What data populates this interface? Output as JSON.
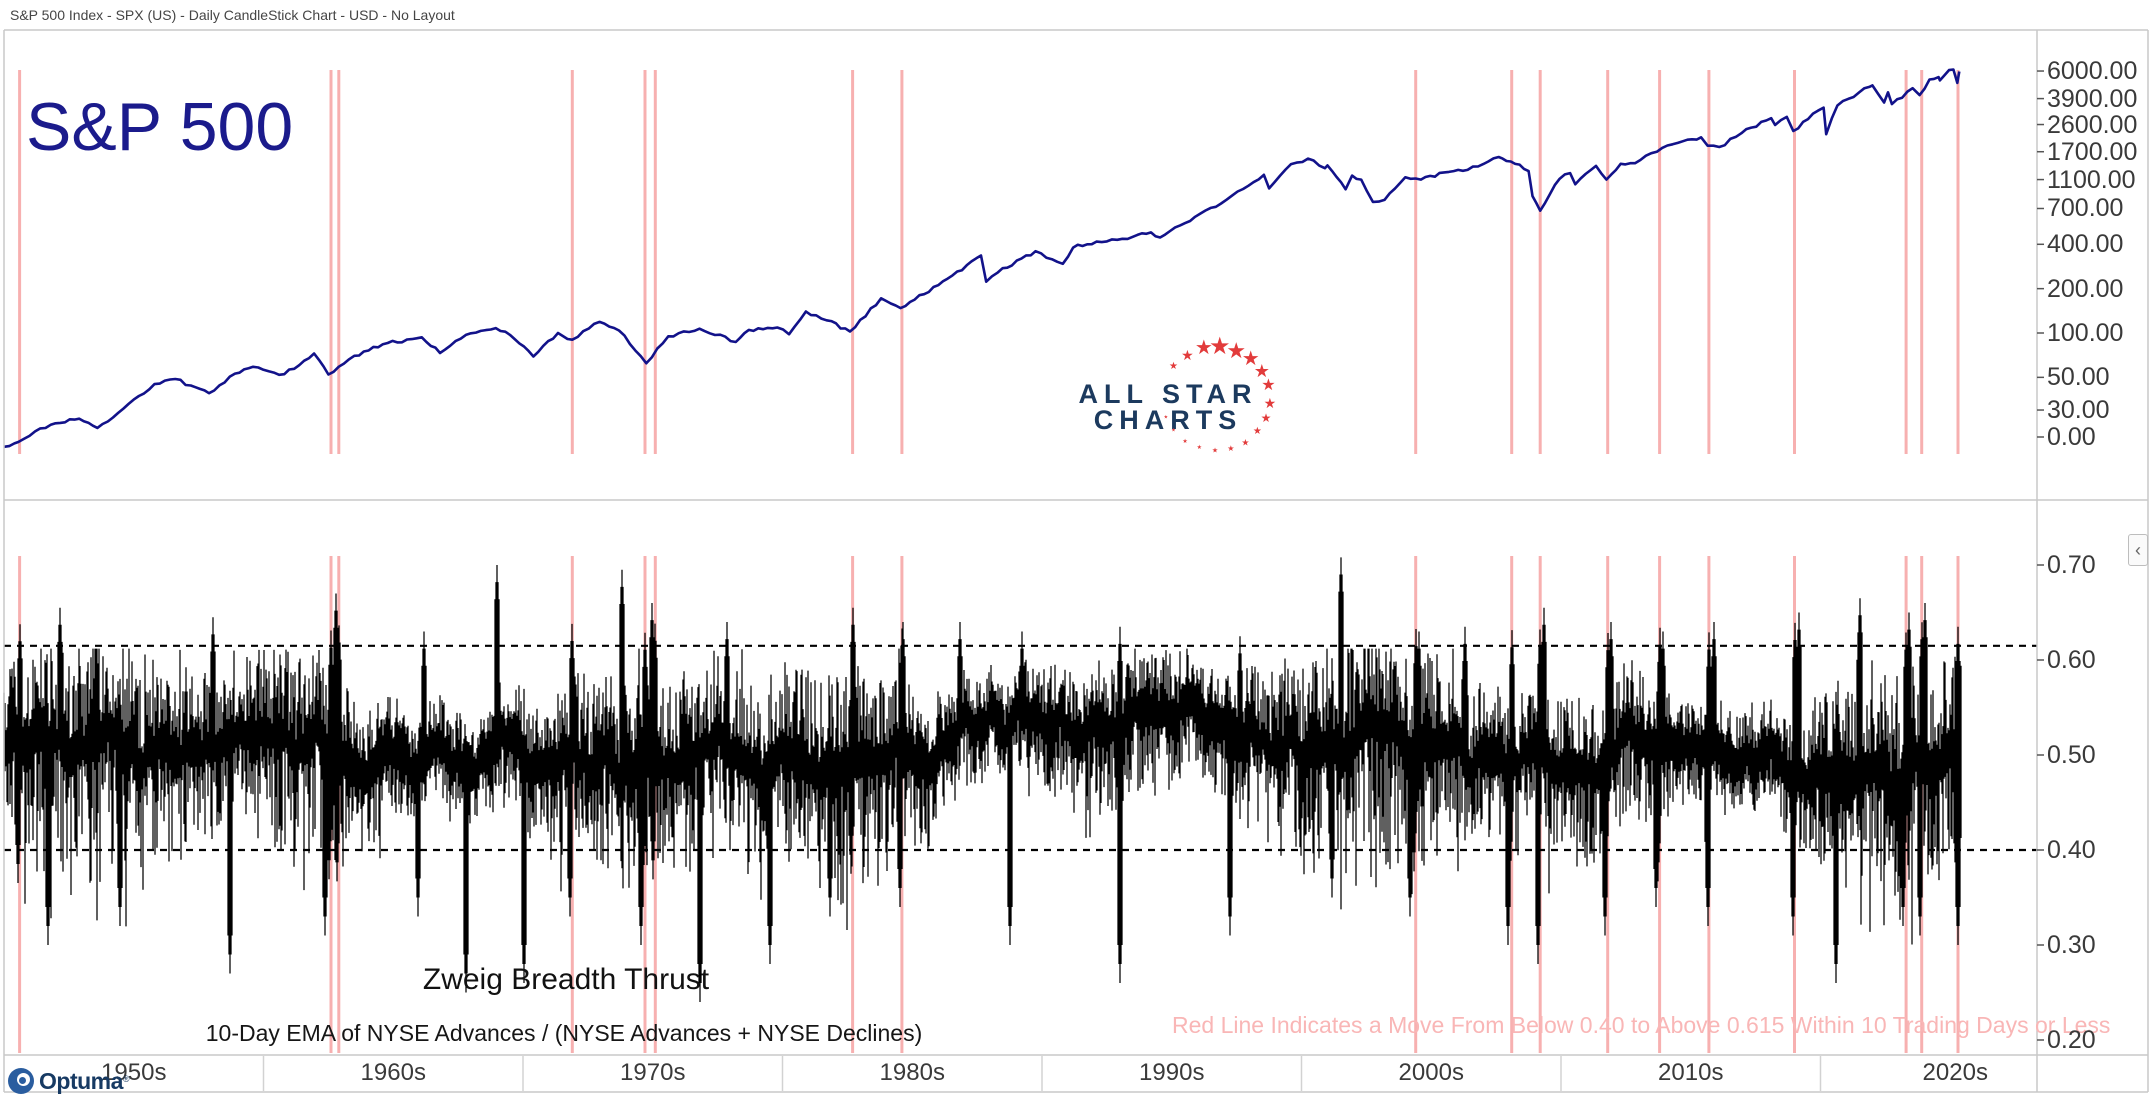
{
  "window": {
    "title": "S&P 500 Index - SPX (US) - Daily CandleStick Chart - USD - No Layout"
  },
  "colors": {
    "signal_line": "#f7b0b0",
    "sp_line": "#12128a",
    "threshold": "#000000",
    "border": "#c9c9c9",
    "decade_sep": "#d2d2d2",
    "tick": "#555555",
    "pink_text": "#f9b6b6",
    "asc_navy": "#1c3a5e",
    "star_red": "#e23b3b",
    "title_navy": "#1b1b8c",
    "optuma_blue": "#2a5d9f",
    "optuma_navy": "#173a63"
  },
  "top_panel": {
    "title": "S&P 500",
    "y_ticks": [
      {
        "v": 6000,
        "label": "6000.00"
      },
      {
        "v": 3900,
        "label": "3900.00"
      },
      {
        "v": 2600,
        "label": "2600.00"
      },
      {
        "v": 1700,
        "label": "1700.00"
      },
      {
        "v": 1100,
        "label": "1100.00"
      },
      {
        "v": 700,
        "label": "700.00"
      },
      {
        "v": 400,
        "label": "400.00"
      },
      {
        "v": 200,
        "label": "200.00"
      },
      {
        "v": 100,
        "label": "100.00"
      },
      {
        "v": 50,
        "label": "50.00"
      },
      {
        "v": 30,
        "label": "30.00"
      },
      {
        "v": 0,
        "label": "0.00"
      }
    ]
  },
  "bottom_panel": {
    "caption_title": "Zweig Breadth Thrust",
    "caption_sub": "10-Day EMA of NYSE Advances / (NYSE Advances + NYSE Declines)",
    "annotation": "Red Line Indicates a Move From Below 0.40 to Above 0.615 Within 10 Trading Days or Less",
    "y_ticks": [
      {
        "v": 0.7,
        "label": "0.70"
      },
      {
        "v": 0.6,
        "label": "0.60"
      },
      {
        "v": 0.5,
        "label": "0.50"
      },
      {
        "v": 0.4,
        "label": "0.40"
      },
      {
        "v": 0.3,
        "label": "0.30"
      },
      {
        "v": 0.2,
        "label": "0.20"
      }
    ]
  },
  "x_axis": {
    "decades": [
      "1950s",
      "1960s",
      "1970s",
      "1980s",
      "1990s",
      "2000s",
      "2010s",
      "2020s"
    ],
    "decade_start_years": [
      1950,
      1960,
      1970,
      1980,
      1990,
      2000,
      2010,
      2020
    ]
  },
  "branding": {
    "optuma": "Optuma",
    "registered": "®",
    "allstar_line1": "ALL STAR",
    "allstar_line2": "CHARTS",
    "stars": [
      {
        "angle": 142,
        "size": 10
      },
      {
        "angle": 122,
        "size": 14
      },
      {
        "angle": 103,
        "size": 20
      },
      {
        "angle": 86,
        "size": 24
      },
      {
        "angle": 68,
        "size": 22
      },
      {
        "angle": 50,
        "size": 20
      },
      {
        "angle": 32,
        "size": 18
      },
      {
        "angle": 14,
        "size": 16
      },
      {
        "angle": -4,
        "size": 14
      },
      {
        "angle": -22,
        "size": 12
      },
      {
        "angle": -40,
        "size": 10
      },
      {
        "angle": -57,
        "size": 9
      },
      {
        "angle": -74,
        "size": 8
      },
      {
        "angle": -91,
        "size": 7
      },
      {
        "angle": -108,
        "size": 6
      },
      {
        "angle": -125,
        "size": 6
      },
      {
        "angle": -142,
        "size": 5
      },
      {
        "angle": -158,
        "size": 5
      }
    ]
  },
  "collapse_button": {
    "glyph": "‹"
  },
  "chart_data": [
    {
      "type": "line",
      "title": "S&P 500",
      "x_unit": "year",
      "x_range": [
        1950,
        2025.4
      ],
      "y_scale": "log",
      "y_ticks": [
        6000,
        3900,
        2600,
        1700,
        1100,
        700,
        400,
        200,
        100,
        50,
        30,
        0
      ],
      "legend": "none",
      "grid": "off",
      "signal_years": [
        1950.6,
        1962.6,
        1962.9,
        1971.9,
        1974.7,
        1975.1,
        1982.7,
        1984.6,
        2004.4,
        2008.1,
        2009.2,
        2011.8,
        2013.8,
        2015.7,
        2019.0,
        2023.3,
        2023.9,
        2025.3
      ],
      "series": [
        {
          "name": "S&P 500 Index",
          "points": [
            [
              1950.0,
              16.9
            ],
            [
              1950.4,
              17.8
            ],
            [
              1950.55,
              18.2
            ],
            [
              1951.2,
              21.5
            ],
            [
              1951.8,
              23.8
            ],
            [
              1952.9,
              26.2
            ],
            [
              1953.6,
              22.7
            ],
            [
              1954.8,
              33
            ],
            [
              1955.8,
              45
            ],
            [
              1956.6,
              48.7
            ],
            [
              1957.2,
              44
            ],
            [
              1957.9,
              39
            ],
            [
              1958.9,
              53
            ],
            [
              1959.6,
              59
            ],
            [
              1960.2,
              55
            ],
            [
              1960.8,
              52.5
            ],
            [
              1961.95,
              72.6
            ],
            [
              1962.5,
              52.3
            ],
            [
              1963.5,
              70
            ],
            [
              1964.6,
              84
            ],
            [
              1965.9,
              92
            ],
            [
              1966.1,
              93.5
            ],
            [
              1966.8,
              73.2
            ],
            [
              1967.8,
              97
            ],
            [
              1968.95,
              108
            ],
            [
              1969.5,
              97
            ],
            [
              1970.4,
              69.3
            ],
            [
              1971.35,
              100
            ],
            [
              1971.9,
              90
            ],
            [
              1972.95,
              119
            ],
            [
              1973.7,
              104
            ],
            [
              1974.75,
              62.3
            ],
            [
              1975.6,
              95
            ],
            [
              1976.8,
              107
            ],
            [
              1978.2,
              86.9
            ],
            [
              1978.7,
              105
            ],
            [
              1979.8,
              109
            ],
            [
              1980.25,
              98
            ],
            [
              1980.9,
              140
            ],
            [
              1981.7,
              122
            ],
            [
              1982.6,
              102.4
            ],
            [
              1983.8,
              172
            ],
            [
              1984.55,
              147.5
            ],
            [
              1986.0,
              211
            ],
            [
              1987.65,
              336
            ],
            [
              1987.85,
              223
            ],
            [
              1988.3,
              258
            ],
            [
              1989.75,
              359
            ],
            [
              1990.8,
              295
            ],
            [
              1991.2,
              380
            ],
            [
              1992.1,
              417
            ],
            [
              1993.5,
              450
            ],
            [
              1994.2,
              482
            ],
            [
              1994.55,
              445
            ],
            [
              1995.9,
              615
            ],
            [
              1996.9,
              757
            ],
            [
              1997.75,
              950
            ],
            [
              1998.55,
              1186
            ],
            [
              1998.75,
              959
            ],
            [
              1999.6,
              1400
            ],
            [
              2000.25,
              1527
            ],
            [
              2000.9,
              1315
            ],
            [
              2001.0,
              1373
            ],
            [
              2001.7,
              945
            ],
            [
              2001.95,
              1170
            ],
            [
              2002.3,
              1100
            ],
            [
              2002.75,
              776
            ],
            [
              2003.2,
              800
            ],
            [
              2004.0,
              1140
            ],
            [
              2004.6,
              1100
            ],
            [
              2005.5,
              1230
            ],
            [
              2006.4,
              1280
            ],
            [
              2007.6,
              1565
            ],
            [
              2007.9,
              1470
            ],
            [
              2008.4,
              1390
            ],
            [
              2008.75,
              1255
            ],
            [
              2008.9,
              850
            ],
            [
              2009.2,
              676
            ],
            [
              2009.95,
              1115
            ],
            [
              2010.35,
              1217
            ],
            [
              2010.55,
              1022
            ],
            [
              2011.35,
              1363
            ],
            [
              2011.75,
              1099
            ],
            [
              2012.3,
              1408
            ],
            [
              2012.85,
              1420
            ],
            [
              2013.9,
              1805
            ],
            [
              2014.7,
              2003
            ],
            [
              2015.4,
              2130
            ],
            [
              2015.65,
              1867
            ],
            [
              2016.1,
              1829
            ],
            [
              2016.95,
              2270
            ],
            [
              2018.1,
              2872
            ],
            [
              2018.25,
              2581
            ],
            [
              2018.7,
              2930
            ],
            [
              2018.95,
              2351
            ],
            [
              2019.9,
              3230
            ],
            [
              2020.12,
              3386
            ],
            [
              2020.22,
              2237
            ],
            [
              2020.65,
              3500
            ],
            [
              2021.9,
              4700
            ],
            [
              2022.0,
              4796
            ],
            [
              2022.45,
              3667
            ],
            [
              2022.6,
              4300
            ],
            [
              2022.75,
              3577
            ],
            [
              2023.55,
              4588
            ],
            [
              2023.82,
              4117
            ],
            [
              2024.2,
              5254
            ],
            [
              2024.55,
              5460
            ],
            [
              2024.6,
              5186
            ],
            [
              2024.95,
              6090
            ],
            [
              2025.12,
              6144
            ],
            [
              2025.27,
              4983
            ],
            [
              2025.35,
              5960
            ]
          ]
        }
      ]
    },
    {
      "type": "area",
      "title": "Zweig Breadth Thrust",
      "subtitle": "10-Day EMA of NYSE Advances / (NYSE Advances + NYSE Declines)",
      "x_unit": "year",
      "x_range": [
        1950,
        2025.4
      ],
      "y_ticks": [
        0.7,
        0.6,
        0.5,
        0.4,
        0.3,
        0.2
      ],
      "y_display_range": [
        0.2,
        0.72
      ],
      "typical_band": [
        0.44,
        0.58
      ],
      "thresholds": {
        "upper": 0.615,
        "lower": 0.4
      },
      "signal_years": [
        1950.6,
        1962.6,
        1962.9,
        1971.9,
        1974.7,
        1975.1,
        1982.7,
        1984.6,
        2004.4,
        2008.1,
        2009.2,
        2011.8,
        2013.8,
        2015.7,
        2019.0,
        2023.3,
        2023.9,
        2025.3
      ],
      "peak_excursions": [
        [
          60,
          0.655
        ],
        [
          213,
          0.645
        ],
        [
          336,
          0.67
        ],
        [
          424,
          0.63
        ],
        [
          497,
          0.7
        ],
        [
          572,
          0.635
        ],
        [
          622,
          0.695
        ],
        [
          652,
          0.66
        ],
        [
          727,
          0.64
        ],
        [
          853,
          0.655
        ],
        [
          903,
          0.64
        ],
        [
          960,
          0.64
        ],
        [
          1022,
          0.63
        ],
        [
          1120,
          0.635
        ],
        [
          1240,
          0.625
        ],
        [
          1341,
          0.708
        ],
        [
          1419,
          0.63
        ],
        [
          1465,
          0.635
        ],
        [
          1544,
          0.655
        ],
        [
          1611,
          0.64
        ],
        [
          1663,
          0.63
        ],
        [
          1714,
          0.64
        ],
        [
          1799,
          0.65
        ],
        [
          1860,
          0.665
        ],
        [
          1909,
          0.65
        ],
        [
          1925,
          0.66
        ],
        [
          1958,
          0.635
        ]
      ],
      "dip_excursions": [
        [
          48,
          0.3
        ],
        [
          120,
          0.32
        ],
        [
          230,
          0.27
        ],
        [
          325,
          0.31
        ],
        [
          418,
          0.33
        ],
        [
          466,
          0.25
        ],
        [
          524,
          0.26
        ],
        [
          570,
          0.33
        ],
        [
          641,
          0.3
        ],
        [
          700,
          0.24
        ],
        [
          770,
          0.28
        ],
        [
          830,
          0.33
        ],
        [
          900,
          0.34
        ],
        [
          1010,
          0.3
        ],
        [
          1120,
          0.26
        ],
        [
          1230,
          0.31
        ],
        [
          1332,
          0.35
        ],
        [
          1410,
          0.33
        ],
        [
          1508,
          0.3
        ],
        [
          1538,
          0.28
        ],
        [
          1605,
          0.31
        ],
        [
          1656,
          0.34
        ],
        [
          1708,
          0.32
        ],
        [
          1793,
          0.31
        ],
        [
          1836,
          0.26
        ],
        [
          1903,
          0.32
        ],
        [
          1920,
          0.31
        ],
        [
          1958,
          0.3
        ]
      ]
    }
  ]
}
